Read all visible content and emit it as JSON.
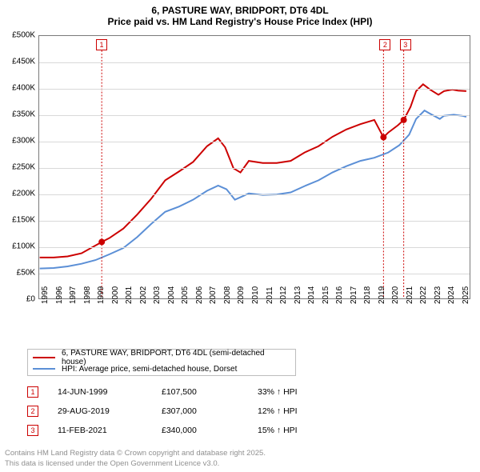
{
  "chart": {
    "title_line1": "6, PASTURE WAY, BRIDPORT, DT6 4DL",
    "title_line2": "Price paid vs. HM Land Registry's House Price Index (HPI)",
    "background_color": "#ffffff",
    "border_color": "#7a7a7a",
    "grid_color": "#d9d9d9",
    "tick_font_size": 10,
    "y_axis": {
      "min": 0,
      "max": 500000,
      "ticks": [
        0,
        50000,
        100000,
        150000,
        200000,
        250000,
        300000,
        350000,
        400000,
        450000,
        500000
      ],
      "labels": [
        "£0",
        "£50K",
        "£100K",
        "£150K",
        "£200K",
        "£250K",
        "£300K",
        "£350K",
        "£400K",
        "£450K",
        "£500K"
      ]
    },
    "x_axis": {
      "min": 1995,
      "max": 2025.8,
      "ticks": [
        1995,
        1996,
        1997,
        1998,
        1999,
        2000,
        2001,
        2002,
        2003,
        2004,
        2005,
        2006,
        2007,
        2008,
        2009,
        2010,
        2011,
        2012,
        2013,
        2014,
        2015,
        2016,
        2017,
        2018,
        2019,
        2020,
        2021,
        2022,
        2023,
        2024,
        2025
      ],
      "labels": [
        "1995",
        "1996",
        "1997",
        "1998",
        "1999",
        "2000",
        "2001",
        "2002",
        "2003",
        "2004",
        "2005",
        "2006",
        "2007",
        "2008",
        "2009",
        "2010",
        "2011",
        "2012",
        "2013",
        "2014",
        "2015",
        "2016",
        "2017",
        "2018",
        "2019",
        "2020",
        "2021",
        "2022",
        "2023",
        "2024",
        "2025"
      ]
    },
    "series": [
      {
        "label": "6, PASTURE WAY, BRIDPORT, DT6 4DL (semi-detached house)",
        "color": "#cc0000",
        "line_width": 2,
        "points": [
          [
            1995,
            78000
          ],
          [
            1996,
            78000
          ],
          [
            1997,
            80000
          ],
          [
            1998,
            86000
          ],
          [
            1999.45,
            107500
          ],
          [
            2000,
            115000
          ],
          [
            2001,
            133000
          ],
          [
            2002,
            160000
          ],
          [
            2003,
            190000
          ],
          [
            2004,
            225000
          ],
          [
            2005,
            242000
          ],
          [
            2006,
            260000
          ],
          [
            2007,
            290000
          ],
          [
            2007.8,
            305000
          ],
          [
            2008.3,
            288000
          ],
          [
            2008.9,
            248000
          ],
          [
            2009.4,
            240000
          ],
          [
            2010,
            262000
          ],
          [
            2011,
            258000
          ],
          [
            2012,
            258000
          ],
          [
            2013,
            262000
          ],
          [
            2014,
            278000
          ],
          [
            2015,
            290000
          ],
          [
            2016,
            308000
          ],
          [
            2017,
            322000
          ],
          [
            2018,
            332000
          ],
          [
            2019,
            340000
          ],
          [
            2019.66,
            307000
          ],
          [
            2020,
            316000
          ],
          [
            2020.7,
            330000
          ],
          [
            2021.11,
            340000
          ],
          [
            2021.6,
            365000
          ],
          [
            2022,
            395000
          ],
          [
            2022.5,
            408000
          ],
          [
            2023,
            398000
          ],
          [
            2023.6,
            388000
          ],
          [
            2024,
            395000
          ],
          [
            2024.6,
            398000
          ],
          [
            2025,
            396000
          ],
          [
            2025.6,
            395000
          ]
        ]
      },
      {
        "label": "HPI: Average price, semi-detached house, Dorset",
        "color": "#5b8fd6",
        "line_width": 2,
        "points": [
          [
            1995,
            57000
          ],
          [
            1996,
            58000
          ],
          [
            1997,
            61000
          ],
          [
            1998,
            66000
          ],
          [
            1999,
            73000
          ],
          [
            2000,
            84000
          ],
          [
            2001,
            96000
          ],
          [
            2002,
            117000
          ],
          [
            2003,
            142000
          ],
          [
            2004,
            165000
          ],
          [
            2005,
            175000
          ],
          [
            2006,
            188000
          ],
          [
            2007,
            205000
          ],
          [
            2007.8,
            215000
          ],
          [
            2008.4,
            208000
          ],
          [
            2009,
            188000
          ],
          [
            2010,
            200000
          ],
          [
            2011,
            197000
          ],
          [
            2012,
            198000
          ],
          [
            2013,
            202000
          ],
          [
            2014,
            214000
          ],
          [
            2015,
            225000
          ],
          [
            2016,
            240000
          ],
          [
            2017,
            252000
          ],
          [
            2018,
            262000
          ],
          [
            2019,
            268000
          ],
          [
            2020,
            278000
          ],
          [
            2020.8,
            292000
          ],
          [
            2021.5,
            312000
          ],
          [
            2022,
            342000
          ],
          [
            2022.6,
            358000
          ],
          [
            2023,
            352000
          ],
          [
            2023.7,
            342000
          ],
          [
            2024,
            348000
          ],
          [
            2024.7,
            350000
          ],
          [
            2025.3,
            348000
          ],
          [
            2025.6,
            346000
          ]
        ]
      }
    ],
    "sale_markers": [
      {
        "n": "1",
        "x": 1999.45,
        "y": 107500,
        "date": "14-JUN-1999",
        "price": "£107,500",
        "pct": "33% ↑ HPI"
      },
      {
        "n": "2",
        "x": 2019.66,
        "y": 307000,
        "date": "29-AUG-2019",
        "price": "£307,000",
        "pct": "12% ↑ HPI"
      },
      {
        "n": "3",
        "x": 2021.11,
        "y": 340000,
        "date": "11-FEB-2021",
        "price": "£340,000",
        "pct": "15% ↑ HPI"
      }
    ],
    "marker_color": "#cc0000",
    "marker_line_color": "#cc0000",
    "attribution_line1": "Contains HM Land Registry data © Crown copyright and database right 2025.",
    "attribution_line2": "This data is licensed under the Open Government Licence v3.0."
  }
}
